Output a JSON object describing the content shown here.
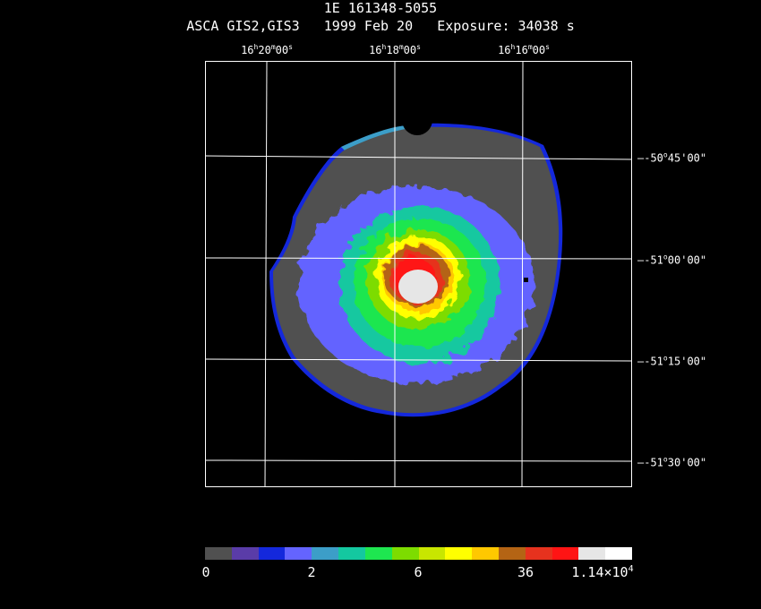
{
  "header": {
    "title": "1E 161348-5055",
    "instrument": "ASCA GIS2,GIS3",
    "date": "1999 Feb 20",
    "exposure": "Exposure: 34038 s"
  },
  "ra_axis": {
    "labels": [
      {
        "h": "16",
        "m": "20",
        "s": "00"
      },
      {
        "h": "16",
        "m": "18",
        "s": "00"
      },
      {
        "h": "16",
        "m": "16",
        "s": "00"
      }
    ]
  },
  "dec_axis": {
    "labels": [
      {
        "deg": "-50",
        "min": "45",
        "sec": "00"
      },
      {
        "deg": "-51",
        "min": "00",
        "sec": "00"
      },
      {
        "deg": "-51",
        "min": "15",
        "sec": "00"
      },
      {
        "deg": "-51",
        "min": "30",
        "sec": "00"
      }
    ]
  },
  "colorbar": {
    "colors": [
      "#505050",
      "#5a3ca8",
      "#1428dc",
      "#6464ff",
      "#3c9ec8",
      "#14c8a0",
      "#1ee650",
      "#7ddc00",
      "#c8e600",
      "#ffff00",
      "#ffc800",
      "#b46414",
      "#e6321e",
      "#ff1414",
      "#e6e6e6",
      "#ffffff"
    ],
    "labels": [
      "0",
      "2",
      "6",
      "36",
      "1.14×10"
    ],
    "exponent": "4"
  },
  "image_colors": {
    "background": "#000000",
    "field": "#505050",
    "low": "#6464ff",
    "rim": "#1428dc",
    "green": "#1ee650",
    "yellow": "#ffff00",
    "orange": "#ffc800",
    "brown": "#b46414",
    "red": "#e6321e",
    "core": "#e6e6e6",
    "grid": "#ffffff"
  }
}
